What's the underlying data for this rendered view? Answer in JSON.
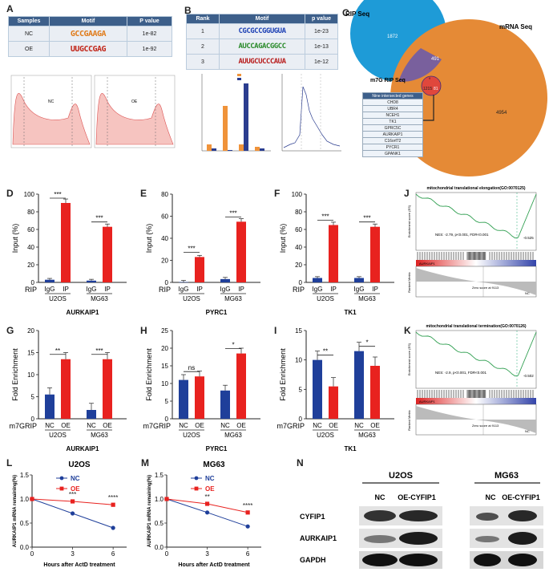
{
  "panels": {
    "A": "A",
    "B": "B",
    "C": "C",
    "D": "D",
    "E": "E",
    "F": "F",
    "G": "G",
    "H": "H",
    "I": "I",
    "J": "J",
    "K": "K",
    "L": "L",
    "M": "M",
    "N": "N"
  },
  "tableA": {
    "headers": [
      "Samples",
      "Motif",
      "P value"
    ],
    "rows": [
      {
        "sample": "NC",
        "motif": "GCCGAAGA",
        "p": "1e-82"
      },
      {
        "sample": "OE",
        "motif": "UUGCCGAG",
        "p": "1e-92"
      }
    ]
  },
  "tableB": {
    "headers": [
      "Rank",
      "Motif",
      "p value"
    ],
    "rows": [
      {
        "rank": "1",
        "motif": "CGCGCCGGUGUA",
        "p": "1e-23"
      },
      {
        "rank": "2",
        "motif": "AUCCAGACGGCC",
        "p": "1e-13"
      },
      {
        "rank": "3",
        "motif": "AUUGCUCCCAUA",
        "p": "1e-12"
      }
    ]
  },
  "venn": {
    "rip_label": "RIP Seq",
    "mrna_label": "mRNA Seq",
    "m7g_label": "m7G RIP Seq",
    "n_rip": "1872",
    "n_ripmrna": "491",
    "n_mrna": "4954",
    "n_m7g": "1215",
    "n_m7gmrna": "81",
    "n_center": "9",
    "table_title": "Nine intersected genes",
    "genes": [
      "CHD8",
      "UBR4",
      "NCEH1",
      "TK1",
      "GPRC5C",
      "AURKAIP1",
      "C16orf72",
      "PYCR1",
      "GPANK1"
    ]
  },
  "ripBars": [
    {
      "panel": "D",
      "gene": "AURKAIP1",
      "ylabel": "Input (%)",
      "ymax": 100,
      "yticks": [
        0,
        20,
        40,
        60,
        80,
        100
      ],
      "values": [
        3,
        90,
        2,
        63
      ],
      "sig": [
        "***",
        "***"
      ]
    },
    {
      "panel": "E",
      "gene": "PYRC1",
      "ylabel": "Input (%)",
      "ymax": 80,
      "yticks": [
        0,
        20,
        40,
        60,
        80
      ],
      "values": [
        0.3,
        23,
        3,
        55
      ],
      "sig": [
        "***",
        "***"
      ]
    },
    {
      "panel": "F",
      "gene": "TK1",
      "ylabel": "Input (%)",
      "ymax": 100,
      "yticks": [
        0,
        20,
        40,
        60,
        80,
        100
      ],
      "values": [
        5,
        65,
        5,
        63
      ],
      "sig": [
        "***",
        "***"
      ]
    }
  ],
  "ripCats": {
    "rowlabel": "RIP",
    "ctrl": "IgG",
    "test": "IP",
    "cell1": "U2OS",
    "cell2": "MG63"
  },
  "m7gBars": [
    {
      "panel": "G",
      "gene": "AURKAIP1",
      "ylabel": "Fold Enrichment",
      "ymax": 20,
      "yticks": [
        0,
        5,
        10,
        15,
        20
      ],
      "values": [
        5.5,
        13.5,
        2,
        13.5
      ],
      "sig": [
        "**",
        "***"
      ]
    },
    {
      "panel": "H",
      "gene": "PYRC1",
      "ylabel": "Fold Enrichment",
      "ymax": 25,
      "yticks": [
        0,
        5,
        10,
        15,
        20,
        25
      ],
      "values": [
        11,
        12,
        8,
        18.5
      ],
      "sig": [
        "ns",
        "*"
      ]
    },
    {
      "panel": "I",
      "gene": "TK1",
      "ylabel": "Fold Enrichment",
      "ymax": 15,
      "yticks": [
        0,
        5,
        10,
        15
      ],
      "values": [
        10,
        5.5,
        11.5,
        9
      ],
      "sig": [
        "**",
        "*"
      ]
    }
  ],
  "m7gCats": {
    "rowlabel": "m7GRIP",
    "ctrl": "NC",
    "test": "OE",
    "cell1": "U2OS",
    "cell2": "MG63"
  },
  "gsea": [
    {
      "panel": "J",
      "title": "mitochondrial translational elongation(GO:0070125)",
      "stats": "NES: -2.79, p<0.001, FDR<0.001",
      "es": "-0.525",
      "gene_label": "AURKAIP1",
      "ylab": "Enrichment score (ES)",
      "rank_lab": "Ranked Metric",
      "zero": "Zero score at 9113",
      "nc": "NC"
    },
    {
      "panel": "K",
      "title": "mitochondrial translational termination(GO:0070126)",
      "stats": "NES: -2.9, p<0.001, FDR<0.001",
      "es": "-0.502",
      "gene_label": "AURKAIP1",
      "ylab": "Enrichment score (ES)",
      "rank_lab": "Ranked Metric",
      "zero": "Zero score at 9113",
      "nc": "NC"
    }
  ],
  "decay": [
    {
      "panel": "L",
      "title": "U2OS",
      "ylabel": "AURKAIP1 mRNA remaining(%)",
      "xlabel": "Hours after ActD treatment",
      "x": [
        0,
        3,
        6
      ],
      "nc": [
        1.0,
        0.7,
        0.4
      ],
      "oe": [
        1.0,
        0.95,
        0.88
      ],
      "sig": [
        "***",
        "****"
      ]
    },
    {
      "panel": "M",
      "title": "MG63",
      "ylabel": "AURKAIP1 mRNA remaining(%)",
      "xlabel": "Hours after ActD treatment",
      "x": [
        0,
        3,
        6
      ],
      "nc": [
        1.0,
        0.72,
        0.43
      ],
      "oe": [
        1.0,
        0.9,
        0.72
      ],
      "sig": [
        "**",
        "****"
      ]
    }
  ],
  "decayLegend": {
    "nc": "NC",
    "oe": "OE"
  },
  "western": {
    "cell1": "U2OS",
    "cell2": "MG63",
    "lanes": [
      "NC",
      "OE-CYFIP1",
      "NC",
      "OE-CYFIP1"
    ],
    "proteins": [
      "CYFIP1",
      "AURKAIP1",
      "GAPDH"
    ]
  },
  "colors": {
    "blue": "#1f3f9a",
    "red": "#e8221f",
    "navy": "#2b3d8f",
    "orange": "#f0933a",
    "green": "#2e9e4f"
  }
}
